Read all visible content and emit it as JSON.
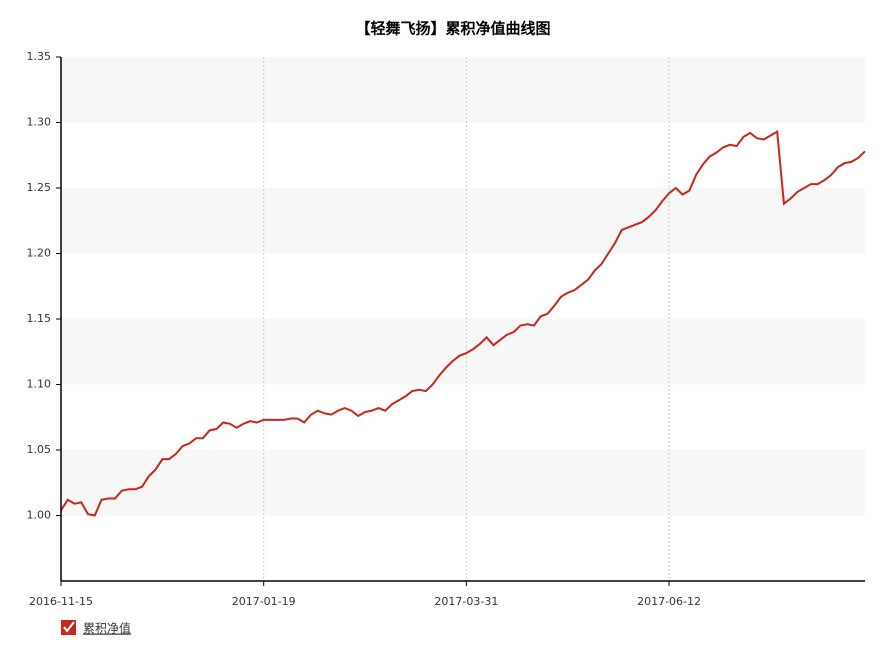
{
  "chart_data": {
    "type": "line",
    "title": "【轻舞飞扬】累积净值曲线图",
    "categories": [
      "2016-11-15",
      null,
      null,
      null,
      null,
      null,
      null,
      null,
      null,
      null,
      null,
      null,
      null,
      null,
      null,
      null,
      null,
      null,
      null,
      null,
      null,
      null,
      null,
      null,
      null,
      null,
      null,
      null,
      null,
      null,
      "2017-01-19",
      null,
      null,
      null,
      null,
      null,
      null,
      null,
      null,
      null,
      null,
      null,
      null,
      null,
      null,
      null,
      null,
      null,
      null,
      null,
      null,
      null,
      null,
      null,
      null,
      null,
      null,
      null,
      null,
      null,
      "2017-03-31",
      null,
      null,
      null,
      null,
      null,
      null,
      null,
      null,
      null,
      null,
      null,
      null,
      null,
      null,
      null,
      null,
      null,
      null,
      null,
      null,
      null,
      null,
      null,
      null,
      null,
      null,
      null,
      null,
      null,
      "2017-06-12",
      null,
      null,
      null,
      null,
      null,
      null,
      null,
      null,
      null,
      null,
      null,
      null,
      null,
      null,
      null,
      null,
      null,
      null,
      null,
      null,
      null,
      null,
      null,
      null,
      null,
      null,
      null,
      null,
      null
    ],
    "series": [
      {
        "name": "累积净值",
        "color": "#c8261c",
        "values": [
          1.004,
          1.012,
          1.009,
          1.01,
          1.001,
          1.0,
          1.012,
          1.013,
          1.013,
          1.019,
          1.02,
          1.02,
          1.022,
          1.03,
          1.035,
          1.043,
          1.043,
          1.047,
          1.053,
          1.055,
          1.059,
          1.059,
          1.065,
          1.066,
          1.071,
          1.07,
          1.067,
          1.07,
          1.072,
          1.071,
          1.073,
          1.073,
          1.073,
          1.073,
          1.074,
          1.074,
          1.071,
          1.077,
          1.08,
          1.078,
          1.077,
          1.08,
          1.082,
          1.08,
          1.076,
          1.079,
          1.08,
          1.082,
          1.08,
          1.085,
          1.088,
          1.091,
          1.095,
          1.096,
          1.095,
          1.1,
          1.107,
          1.113,
          1.118,
          1.122,
          1.124,
          1.127,
          1.131,
          1.136,
          1.13,
          1.134,
          1.138,
          1.14,
          1.145,
          1.146,
          1.145,
          1.152,
          1.154,
          1.16,
          1.167,
          1.17,
          1.172,
          1.176,
          1.18,
          1.187,
          1.192,
          1.2,
          1.208,
          1.218,
          1.22,
          1.222,
          1.224,
          1.228,
          1.233,
          1.24,
          1.246,
          1.25,
          1.245,
          1.248,
          1.26,
          1.268,
          1.274,
          1.277,
          1.281,
          1.283,
          1.282,
          1.289,
          1.292,
          1.288,
          1.287,
          1.29,
          1.293,
          1.238,
          1.242,
          1.247,
          1.25,
          1.253,
          1.253,
          1.256,
          1.26,
          1.266,
          1.269,
          1.27,
          1.273,
          1.278
        ]
      }
    ],
    "ylim": [
      0.95,
      1.35
    ],
    "yticks": [
      {
        "value": 1.0,
        "label": "1.00"
      },
      1.05,
      {
        "value": 1.1,
        "label": "1.10"
      },
      1.15,
      {
        "value": 1.2,
        "label": "1.20"
      },
      1.25,
      {
        "value": 1.3,
        "label": "1.30"
      },
      1.35
    ],
    "grid": true
  }
}
